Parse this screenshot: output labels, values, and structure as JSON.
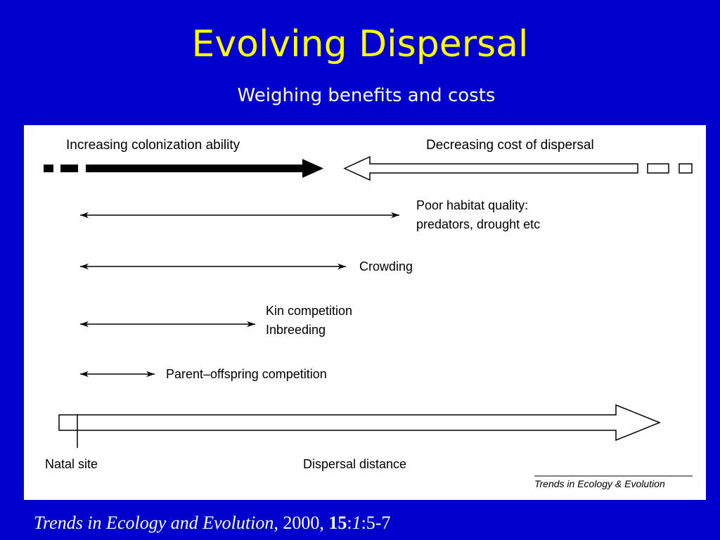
{
  "slide": {
    "title": "Evolving Dispersal",
    "subtitle": "Weighing benefits and costs",
    "colors": {
      "background": "#0000cc",
      "title": "#ffff00",
      "subtitle": "#ffffff",
      "panel": "#ffffff",
      "ink": "#000000"
    }
  },
  "diagram": {
    "top_left_label": "Increasing colonization ability",
    "top_right_label": "Decreasing cost of dispersal",
    "ranges": [
      {
        "lines": [
          "Poor habitat quality:",
          "predators, drought etc"
        ]
      },
      {
        "lines": [
          "Crowding"
        ]
      },
      {
        "lines": [
          "Kin competition",
          "Inbreeding"
        ]
      },
      {
        "lines": [
          "Parent–offspring competition"
        ]
      }
    ],
    "origin_label": "Natal site",
    "axis_label": "Dispersal distance",
    "journal_mark": "Trends in Ecology & Evolution"
  },
  "citation": {
    "journal": "Trends in Ecology and Evolution",
    "sep1": ", 2000, ",
    "volume": "15",
    "sep2": ":",
    "issue": "1",
    "pages": ":5-7"
  }
}
